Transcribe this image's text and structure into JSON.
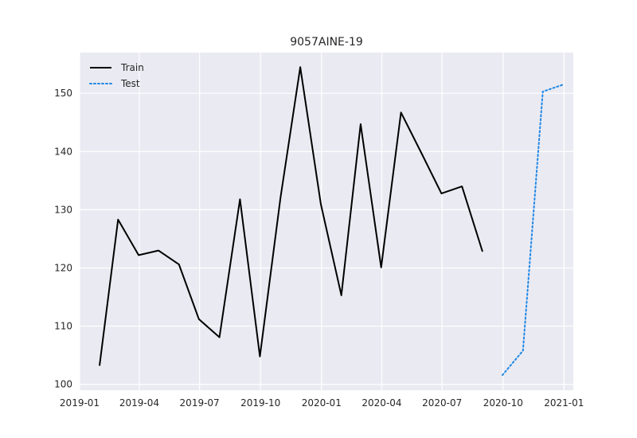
{
  "chart_data": {
    "type": "line",
    "title": "9057AINE-19",
    "xlabel": "",
    "ylabel": "",
    "x_axis_type": "date",
    "xlim": [
      "2019-01-01",
      "2021-01-15"
    ],
    "ylim": [
      99,
      157
    ],
    "x_ticks": [
      {
        "date": "2019-01-01",
        "label": "2019-01"
      },
      {
        "date": "2019-04-01",
        "label": "2019-04"
      },
      {
        "date": "2019-07-01",
        "label": "2019-07"
      },
      {
        "date": "2019-10-01",
        "label": "2019-10"
      },
      {
        "date": "2020-01-01",
        "label": "2020-01"
      },
      {
        "date": "2020-04-01",
        "label": "2020-04"
      },
      {
        "date": "2020-07-01",
        "label": "2020-07"
      },
      {
        "date": "2020-10-01",
        "label": "2020-10"
      },
      {
        "date": "2021-01-01",
        "label": "2021-01"
      }
    ],
    "y_ticks": [
      100,
      110,
      120,
      130,
      140,
      150
    ],
    "grid": true,
    "legend_position": "top-left",
    "series": [
      {
        "name": "Train",
        "color": "#000000",
        "style": "solid",
        "points": [
          {
            "x": "2019-01-31",
            "y": 103.2
          },
          {
            "x": "2019-02-28",
            "y": 128.3
          },
          {
            "x": "2019-03-31",
            "y": 122.2
          },
          {
            "x": "2019-04-30",
            "y": 123.0
          },
          {
            "x": "2019-05-31",
            "y": 120.6
          },
          {
            "x": "2019-06-30",
            "y": 111.2
          },
          {
            "x": "2019-07-31",
            "y": 108.1
          },
          {
            "x": "2019-08-31",
            "y": 131.8
          },
          {
            "x": "2019-09-30",
            "y": 104.8
          },
          {
            "x": "2019-10-31",
            "y": 132.0
          },
          {
            "x": "2019-11-30",
            "y": 154.5
          },
          {
            "x": "2019-12-31",
            "y": 131.0
          },
          {
            "x": "2020-01-31",
            "y": 115.3
          },
          {
            "x": "2020-02-29",
            "y": 144.7
          },
          {
            "x": "2020-03-31",
            "y": 120.1
          },
          {
            "x": "2020-04-30",
            "y": 146.7
          },
          {
            "x": "2020-05-31",
            "y": 139.7
          },
          {
            "x": "2020-06-30",
            "y": 132.8
          },
          {
            "x": "2020-07-31",
            "y": 134.0
          },
          {
            "x": "2020-08-31",
            "y": 122.8
          }
        ]
      },
      {
        "name": "Test",
        "color": "#1e88e5",
        "style": "dotted",
        "points": [
          {
            "x": "2020-09-30",
            "y": 101.6
          },
          {
            "x": "2020-10-31",
            "y": 105.8
          },
          {
            "x": "2020-11-30",
            "y": 150.3
          },
          {
            "x": "2020-12-31",
            "y": 151.5
          }
        ]
      }
    ]
  }
}
